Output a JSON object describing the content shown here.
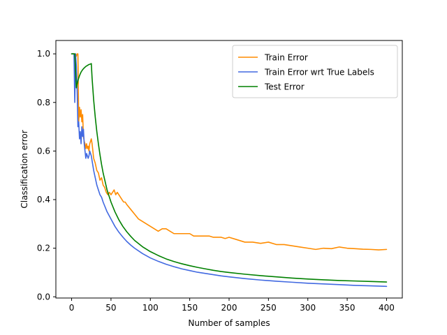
{
  "chart_data": {
    "type": "line",
    "title": "",
    "xlabel": "Number of samples",
    "ylabel": "Classification error",
    "xlim": [
      -20,
      420
    ],
    "ylim": [
      -0.005,
      1.055
    ],
    "xticks": [
      0,
      50,
      100,
      150,
      200,
      250,
      300,
      350,
      400
    ],
    "yticks": [
      0.0,
      0.2,
      0.4,
      0.6,
      0.8,
      1.0
    ],
    "ytick_labels": [
      "0.0",
      "0.2",
      "0.4",
      "0.6",
      "0.8",
      "1.0"
    ],
    "grid": false,
    "legend_position": "upper right",
    "series": [
      {
        "name": "Train Error",
        "color": "#ff8c00",
        "x": [
          0,
          3,
          4,
          5,
          6,
          7,
          8,
          9,
          10,
          11,
          12,
          13,
          14,
          15,
          16,
          17,
          18,
          19,
          20,
          21,
          22,
          23,
          24,
          25,
          26,
          27,
          28,
          30,
          32,
          34,
          36,
          38,
          40,
          42,
          44,
          46,
          48,
          50,
          52,
          54,
          56,
          58,
          60,
          62,
          64,
          66,
          68,
          70,
          75,
          80,
          85,
          90,
          95,
          100,
          105,
          110,
          115,
          120,
          125,
          130,
          135,
          140,
          145,
          150,
          155,
          160,
          165,
          170,
          175,
          180,
          185,
          190,
          195,
          200,
          210,
          220,
          230,
          240,
          250,
          260,
          270,
          280,
          290,
          300,
          310,
          320,
          330,
          340,
          350,
          360,
          370,
          380,
          390,
          400
        ],
        "y": [
          1.0,
          1.0,
          1.0,
          1.0,
          0.99,
          1.0,
          1.0,
          0.72,
          0.78,
          0.74,
          0.77,
          0.72,
          0.75,
          0.66,
          0.64,
          0.63,
          0.61,
          0.63,
          0.61,
          0.62,
          0.6,
          0.63,
          0.64,
          0.65,
          0.63,
          0.6,
          0.57,
          0.55,
          0.52,
          0.51,
          0.48,
          0.49,
          0.46,
          0.45,
          0.43,
          0.42,
          0.43,
          0.42,
          0.43,
          0.44,
          0.42,
          0.43,
          0.42,
          0.41,
          0.4,
          0.39,
          0.39,
          0.38,
          0.36,
          0.34,
          0.32,
          0.31,
          0.3,
          0.29,
          0.28,
          0.27,
          0.28,
          0.28,
          0.27,
          0.26,
          0.26,
          0.26,
          0.26,
          0.26,
          0.25,
          0.25,
          0.25,
          0.25,
          0.25,
          0.245,
          0.245,
          0.245,
          0.24,
          0.245,
          0.235,
          0.225,
          0.225,
          0.22,
          0.225,
          0.215,
          0.215,
          0.21,
          0.205,
          0.2,
          0.195,
          0.2,
          0.198,
          0.205,
          0.2,
          0.198,
          0.196,
          0.195,
          0.193,
          0.195
        ]
      },
      {
        "name": "Train Error wrt True Labels",
        "color": "#4169e1",
        "x": [
          0,
          3,
          4,
          5,
          6,
          7,
          8,
          9,
          10,
          11,
          12,
          13,
          14,
          15,
          16,
          17,
          18,
          19,
          20,
          21,
          22,
          23,
          24,
          25,
          26,
          27,
          28,
          30,
          32,
          34,
          36,
          38,
          40,
          45,
          50,
          55,
          60,
          65,
          70,
          75,
          80,
          90,
          100,
          110,
          120,
          130,
          140,
          150,
          160,
          170,
          180,
          190,
          200,
          220,
          240,
          260,
          280,
          300,
          320,
          340,
          360,
          380,
          400
        ],
        "y": [
          1.0,
          1.0,
          0.8,
          1.0,
          0.95,
          0.85,
          0.7,
          0.72,
          0.65,
          0.68,
          0.63,
          0.7,
          0.66,
          0.69,
          0.63,
          0.6,
          0.57,
          0.59,
          0.58,
          0.57,
          0.58,
          0.6,
          0.59,
          0.58,
          0.56,
          0.54,
          0.52,
          0.49,
          0.46,
          0.44,
          0.42,
          0.41,
          0.39,
          0.35,
          0.32,
          0.29,
          0.266,
          0.246,
          0.228,
          0.213,
          0.2,
          0.178,
          0.16,
          0.146,
          0.134,
          0.124,
          0.115,
          0.108,
          0.101,
          0.096,
          0.091,
          0.086,
          0.082,
          0.075,
          0.069,
          0.064,
          0.06,
          0.056,
          0.053,
          0.05,
          0.047,
          0.045,
          0.043
        ]
      },
      {
        "name": "Test Error",
        "color": "#008000",
        "x": [
          0,
          4,
          6,
          8,
          10,
          12,
          14,
          16,
          18,
          20,
          22,
          24,
          25,
          26,
          28,
          30,
          32,
          34,
          36,
          38,
          40,
          45,
          50,
          55,
          60,
          65,
          70,
          75,
          80,
          90,
          100,
          110,
          120,
          130,
          140,
          150,
          160,
          170,
          180,
          190,
          200,
          220,
          240,
          260,
          280,
          300,
          320,
          340,
          360,
          380,
          400
        ],
        "y": [
          1.0,
          1.0,
          0.86,
          0.89,
          0.91,
          0.925,
          0.935,
          0.942,
          0.948,
          0.952,
          0.956,
          0.958,
          0.96,
          0.9,
          0.81,
          0.74,
          0.68,
          0.63,
          0.585,
          0.545,
          0.51,
          0.44,
          0.39,
          0.35,
          0.317,
          0.29,
          0.268,
          0.249,
          0.232,
          0.206,
          0.186,
          0.17,
          0.156,
          0.145,
          0.136,
          0.128,
          0.121,
          0.115,
          0.109,
          0.104,
          0.1,
          0.093,
          0.087,
          0.082,
          0.077,
          0.073,
          0.07,
          0.067,
          0.065,
          0.063,
          0.061
        ]
      }
    ]
  }
}
